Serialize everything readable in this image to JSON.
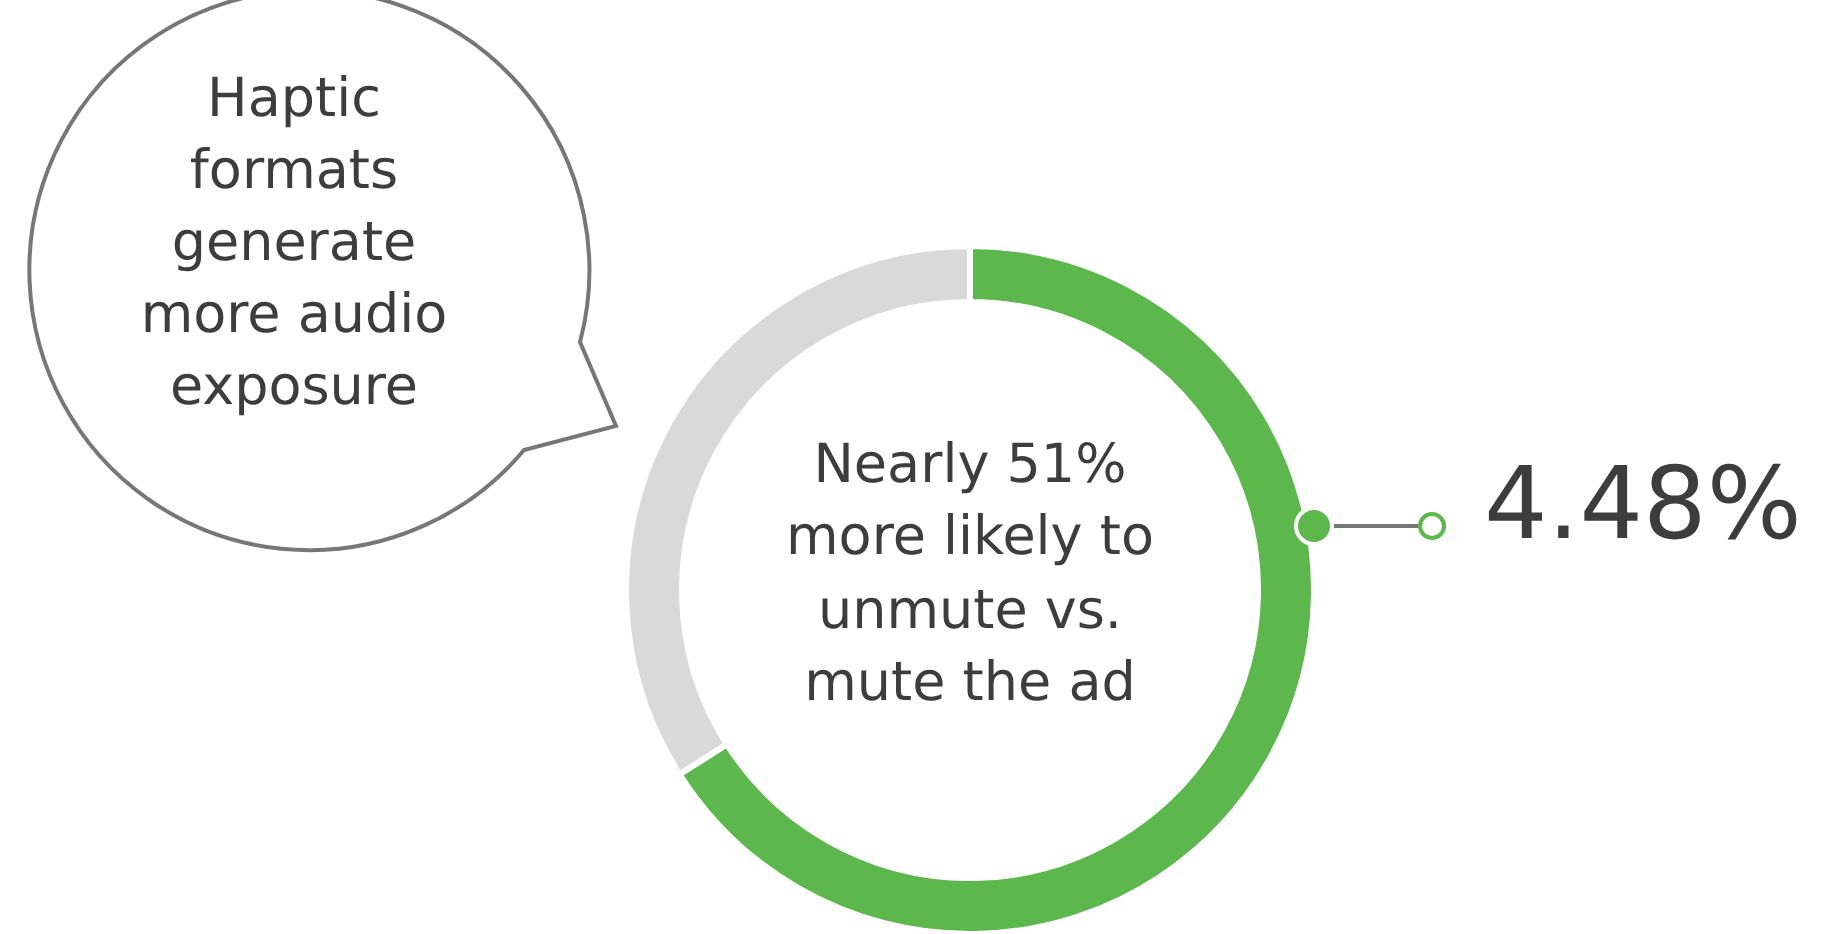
{
  "chart_data": {
    "type": "donut",
    "categories": [
      null,
      null
    ],
    "values": [
      66,
      34
    ],
    "colors": [
      "#5cb84c",
      "#d9d9d9"
    ],
    "annotations": [
      "Nearly 51% more likely to unmute vs. mute the ad",
      "4.48%",
      "Haptic formats generate more audio exposure"
    ]
  }
}
